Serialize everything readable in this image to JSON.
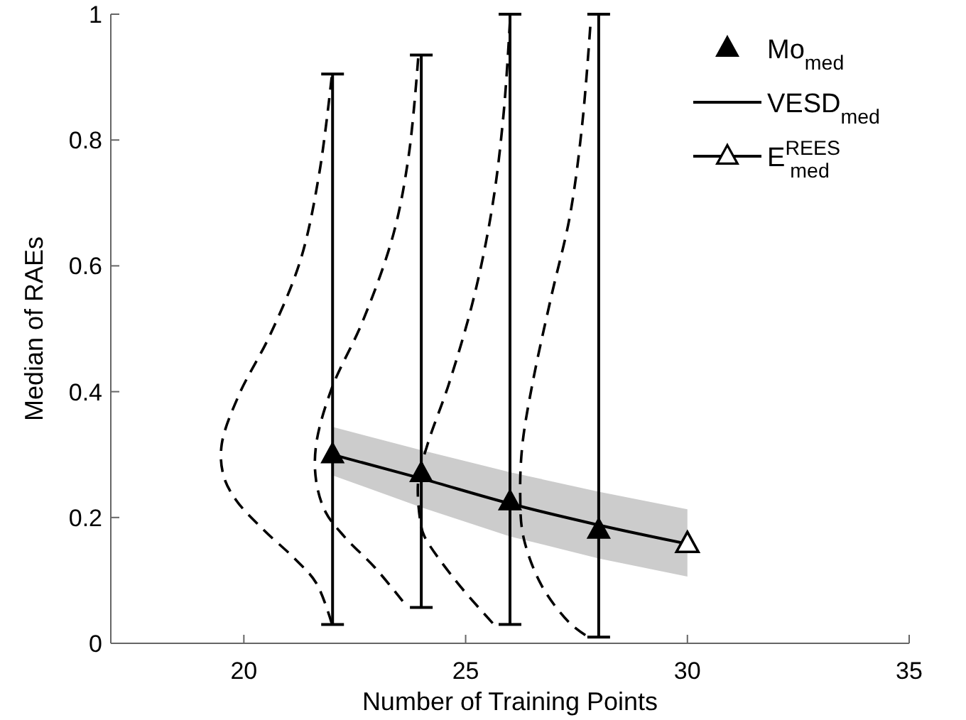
{
  "chart_data": {
    "type": "line",
    "xlabel": "Number of Training Points",
    "ylabel": "Median of RAEs",
    "xlim": [
      17,
      35
    ],
    "xticks": [
      20,
      25,
      30,
      35
    ],
    "ylim": [
      0,
      1
    ],
    "yticks": [
      0,
      0.2,
      0.4,
      0.6,
      0.8,
      1
    ],
    "grid": false,
    "legend": "top right",
    "series": [
      {
        "type": "scatter",
        "name": "Mo$_{med}$",
        "color": "#000000",
        "marker": "triangle",
        "x": [
          22,
          24,
          26,
          28
        ],
        "values": [
          0.3,
          0.27,
          0.225,
          0.18
        ],
        "errors": [
          [
            0.03,
            0.905
          ],
          [
            0.057,
            0.935
          ],
          [
            0.03,
            1
          ],
          [
            0.01,
            1
          ]
        ]
      },
      {
        "name": "VESD$_{med}$",
        "color": "#000000",
        "marker": "none",
        "line_style": "solid",
        "x": [
          22,
          24,
          26,
          28,
          30
        ],
        "values": [
          0.3,
          0.262,
          0.222,
          0.188,
          0.158
        ],
        "lower": [
          0.267,
          0.216,
          0.17,
          0.135,
          0.106
        ],
        "upper": [
          0.344,
          0.307,
          0.272,
          0.241,
          0.213
        ]
      },
      {
        "name": "E$^{REES}$$_{med}$",
        "color": "#000000",
        "marker": "triangle",
        "line_style": "solid",
        "x": [
          30
        ],
        "values": [
          0.158
        ]
      },
      {
        "color": "#000000",
        "marker": "none",
        "line_style": "dashed",
        "x": [
          21.98,
          21.7,
          21.28,
          20.59,
          19.89,
          19.5,
          19.54,
          19.82,
          20.45,
          21.14,
          21.63,
          21.98
        ],
        "values": [
          0.9,
          0.747,
          0.61,
          0.49,
          0.395,
          0.316,
          0.267,
          0.228,
          0.18,
          0.135,
          0.096,
          0.032
        ]
      },
      {
        "color": "#000000",
        "marker": "none",
        "line_style": "dashed",
        "x": [
          23.93,
          23.72,
          23.37,
          22.68,
          21.98,
          21.63,
          21.63,
          21.84,
          22.26,
          22.96,
          23.58
        ],
        "values": [
          0.93,
          0.777,
          0.65,
          0.512,
          0.405,
          0.316,
          0.258,
          0.209,
          0.17,
          0.12,
          0.067
        ]
      },
      {
        "color": "#000000",
        "marker": "none",
        "line_style": "dashed",
        "x": [
          26.0,
          25.86,
          25.61,
          25.19,
          24.63,
          24.14,
          23.93,
          23.99,
          24.07,
          24.77,
          25.61
        ],
        "values": [
          0.99,
          0.845,
          0.698,
          0.551,
          0.414,
          0.316,
          0.258,
          0.189,
          0.17,
          0.1,
          0.032
        ]
      },
      {
        "color": "#000000",
        "marker": "none",
        "line_style": "dashed",
        "x": [
          27.81,
          27.63,
          27.35,
          26.93,
          26.51,
          26.28,
          26.23,
          26.3,
          26.72,
          27.35,
          27.7
        ],
        "values": [
          0.98,
          0.826,
          0.679,
          0.551,
          0.414,
          0.316,
          0.238,
          0.17,
          0.091,
          0.032,
          0.013
        ]
      }
    ]
  }
}
